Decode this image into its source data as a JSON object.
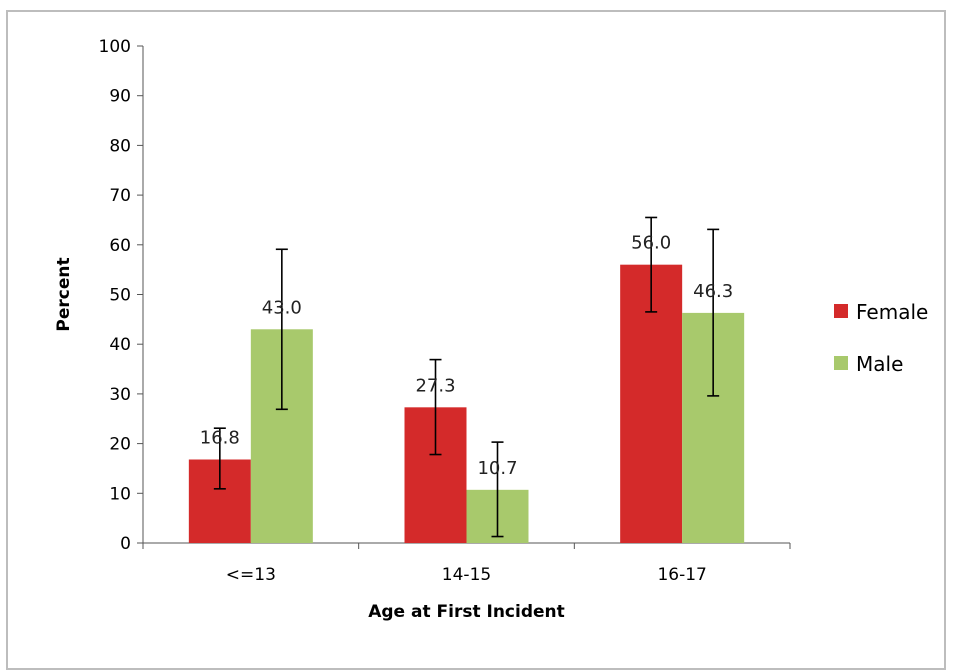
{
  "chart_data": {
    "type": "bar",
    "title": "",
    "xlabel": "Age at First Incident",
    "ylabel": "Percent",
    "ylim": [
      0,
      100
    ],
    "yticks": [
      0,
      10,
      20,
      30,
      40,
      50,
      60,
      70,
      80,
      90,
      100
    ],
    "categories": [
      "<=13",
      "14-15",
      "16-17"
    ],
    "series": [
      {
        "name": "Female",
        "color": "#d42a2a",
        "values": [
          16.8,
          27.3,
          56.0
        ],
        "value_labels": [
          "16.8",
          "27.3",
          "56.0"
        ],
        "error_low": [
          10.9,
          17.8,
          46.5
        ],
        "error_high": [
          23.1,
          36.9,
          65.5
        ]
      },
      {
        "name": "Male",
        "color": "#a8c96c",
        "values": [
          43.0,
          10.7,
          46.3
        ],
        "value_labels": [
          "43.0",
          "10.7",
          "46.3"
        ],
        "error_low": [
          26.9,
          1.3,
          29.6
        ],
        "error_high": [
          59.1,
          20.3,
          63.1
        ]
      }
    ],
    "grid": false,
    "legend_position": "right"
  }
}
